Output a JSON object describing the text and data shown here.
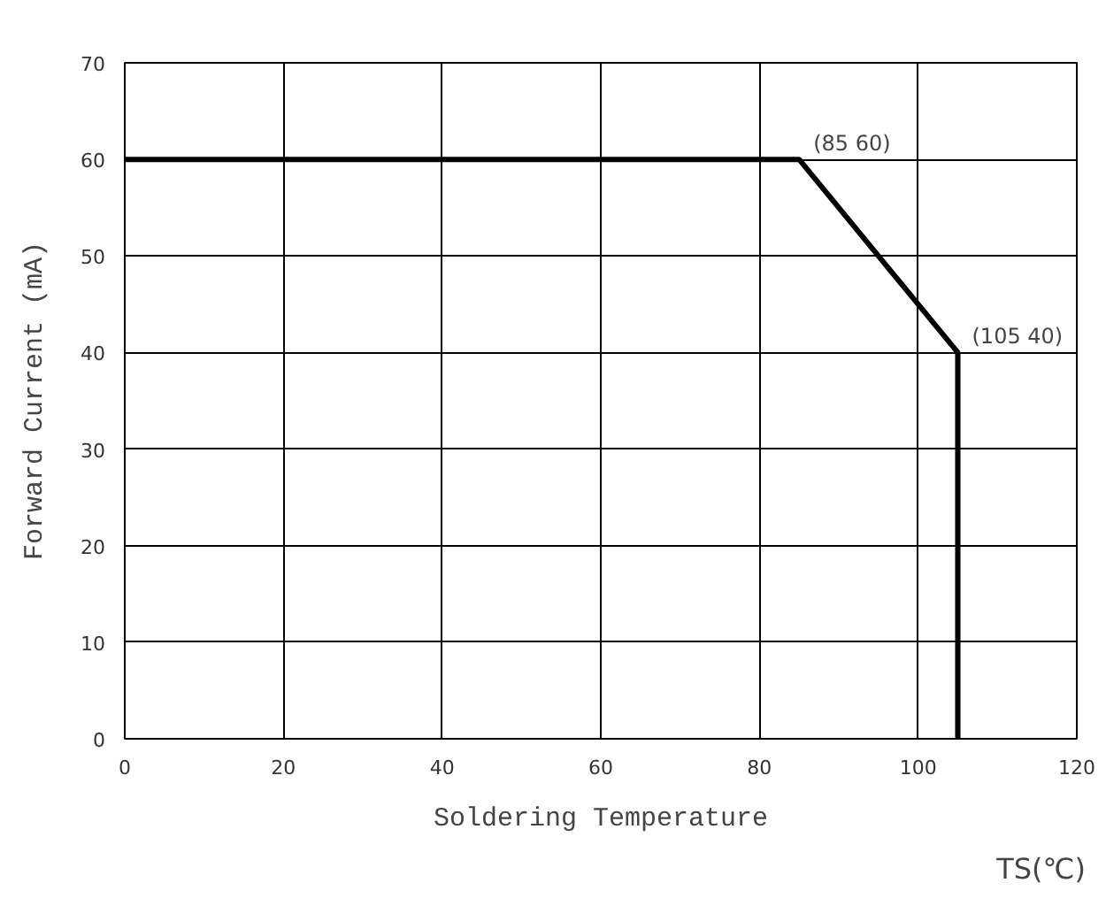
{
  "chart_data": {
    "type": "line",
    "xlabel": "Soldering Temperature",
    "ylabel": "Forward Current (mA)",
    "x": [
      0,
      85,
      105,
      105
    ],
    "values": [
      60,
      60,
      40,
      0
    ],
    "color": "#000000",
    "line_style": "solid",
    "marker": "none",
    "xlim": [
      0,
      120
    ],
    "xticks": [
      0,
      20,
      40,
      60,
      80,
      100,
      120
    ],
    "ylim": [
      0,
      70
    ],
    "yticks": [
      0,
      10,
      20,
      30,
      40,
      50,
      60,
      70
    ],
    "grid": true,
    "annotations": [
      {
        "text": "(85 60)",
        "x": 85,
        "y": 60
      },
      {
        "text": "(105 40)",
        "x": 105,
        "y": 40
      },
      "TS(℃)"
    ]
  }
}
